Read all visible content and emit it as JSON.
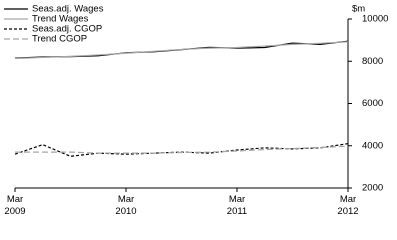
{
  "chart_data": {
    "type": "line",
    "y_label": "$m",
    "categories": [
      "Mar 2009",
      null,
      null,
      null,
      "Mar 2010",
      null,
      null,
      null,
      "Mar 2011",
      null,
      null,
      null,
      "Mar 2012"
    ],
    "series": [
      {
        "name": "Seas.adj. Wages",
        "color": "#000000",
        "dashed": false,
        "values": [
          8150,
          8200,
          8220,
          8260,
          8400,
          8450,
          8550,
          8660,
          8620,
          8650,
          8860,
          8800,
          8950
        ]
      },
      {
        "name": "Trend Wages",
        "color": "#a6a6a6",
        "dashed": false,
        "values": [
          8130,
          8180,
          8230,
          8300,
          8380,
          8470,
          8560,
          8620,
          8650,
          8720,
          8800,
          8850,
          8920
        ]
      },
      {
        "name": "Seas.adj. CGOP",
        "color": "#000000",
        "dashed": true,
        "values": [
          3600,
          4050,
          3500,
          3650,
          3600,
          3650,
          3700,
          3650,
          3800,
          3900,
          3850,
          3900,
          4100
        ]
      },
      {
        "name": "Trend CGOP",
        "color": "#a6a6a6",
        "dashed": true,
        "values": [
          3700,
          3700,
          3700,
          3650,
          3650,
          3650,
          3680,
          3700,
          3750,
          3820,
          3870,
          3920,
          3980
        ]
      }
    ],
    "ylim": [
      2000,
      10000
    ],
    "yticks": [
      2000,
      4000,
      6000,
      8000,
      10000
    ]
  }
}
